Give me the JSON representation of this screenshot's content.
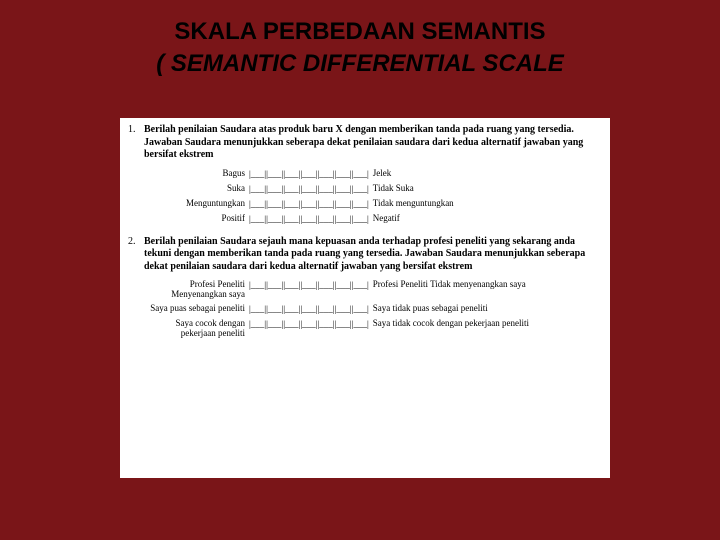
{
  "title": {
    "line1": "SKALA PERBEDAAN SEMANTIS",
    "line2": "( SEMANTIC DIFFERENTIAL SCALE"
  },
  "doc": {
    "background_color": "#ffffff",
    "page_background": "#7a1518",
    "scale_cells": 7,
    "cell_glyph": "|___|",
    "questions": [
      {
        "num": "1.",
        "text": "Berilah penilaian Saudara atas produk baru X dengan memberikan tanda  pada ruang yang tersedia. Jawaban Saudara menunjukkan seberapa dekat penilaian saudara dari kedua alternatif jawaban yang bersifat ekstrem",
        "rows": [
          {
            "left": "Bagus",
            "right": "Jelek"
          },
          {
            "left": "Suka",
            "right": "Tidak Suka"
          },
          {
            "left": "Menguntungkan",
            "right": "Tidak menguntungkan"
          },
          {
            "left": "Positif",
            "right": "Negatif"
          }
        ]
      },
      {
        "num": "2.",
        "text": "Berilah penilaian Saudara sejauh mana kepuasan anda terhadap profesi peneliti yang sekarang anda tekuni dengan memberikan tanda pada ruang yang tersedia. Jawaban Saudara menunjukkan seberapa dekat penilaian saudara dari kedua alternatif jawaban yang bersifat ekstrem",
        "rows": [
          {
            "left": "Profesi Peneliti Menyenangkan saya",
            "right": "Profesi Peneliti Tidak menyenangkan saya"
          },
          {
            "left": "Saya puas sebagai peneliti",
            "right": "Saya tidak puas sebagai peneliti"
          },
          {
            "left": "Saya cocok dengan pekerjaan peneliti",
            "right": "Saya tidak cocok dengan pekerjaan peneliti"
          }
        ]
      }
    ]
  }
}
